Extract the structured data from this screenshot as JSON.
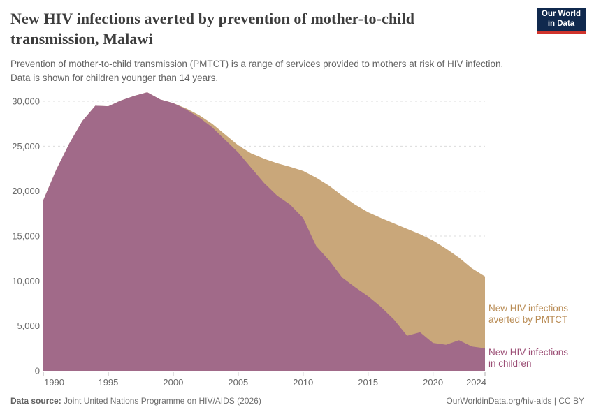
{
  "header": {
    "title": "New HIV infections averted by prevention of mother-to-child\ntransmission, Malawi",
    "subtitle": "Prevention of mother-to-child transmission (PMTCT) is a range of services provided to mothers at risk of HIV infection.\nData is shown for children younger than 14 years.",
    "logo": {
      "line1": "Our World",
      "line2": "in Data",
      "bg_color": "#10294e",
      "bar_color": "#d0342c"
    }
  },
  "footer": {
    "data_source_label": "Data source:",
    "data_source_text": " Joint United Nations Programme on HIV/AIDS (2026)",
    "attribution": "OurWorldinData.org/hiv-aids | CC BY"
  },
  "colors": {
    "grid": "#dcdcdc",
    "axis_text": "#6b6b6b",
    "tick_mark": "#afafaf",
    "background": "#ffffff"
  },
  "chart_data": {
    "type": "area",
    "stacked": true,
    "title": "New HIV infections averted by prevention of mother-to-child transmission, Malawi",
    "xlabel": "",
    "ylabel": "",
    "x": [
      1990,
      1991,
      1992,
      1993,
      1994,
      1995,
      1996,
      1997,
      1998,
      1999,
      2000,
      2001,
      2002,
      2003,
      2004,
      2005,
      2006,
      2007,
      2008,
      2009,
      2010,
      2011,
      2012,
      2013,
      2014,
      2015,
      2016,
      2017,
      2018,
      2019,
      2020,
      2021,
      2022,
      2023,
      2024
    ],
    "series": [
      {
        "name": "New HIV infections in children",
        "label_lines": "New HIV infections\nin children",
        "color": "#a16a89",
        "label_color": "#9c4f76",
        "values": [
          19000,
          22400,
          25300,
          27800,
          29500,
          29450,
          30100,
          30600,
          31000,
          30200,
          29800,
          29100,
          28200,
          27100,
          25700,
          24300,
          22600,
          20900,
          19500,
          18500,
          17000,
          13900,
          12300,
          10400,
          9300,
          8300,
          7100,
          5700,
          3900,
          4300,
          3100,
          2900,
          3400,
          2700,
          2500
        ]
      },
      {
        "name": "New HIV infections averted by PMTCT",
        "label_lines": "New HIV infections\naverted by PMTCT",
        "color": "#c9a77a",
        "label_color": "#b98c55",
        "values": [
          0,
          0,
          0,
          0,
          0,
          0,
          0,
          0,
          0,
          0,
          0,
          100,
          250,
          400,
          600,
          800,
          1600,
          2700,
          3600,
          4200,
          5250,
          7600,
          8300,
          9100,
          9200,
          9350,
          9900,
          10700,
          11900,
          10900,
          11400,
          10700,
          9200,
          8700,
          8000
        ]
      }
    ],
    "xticks": [
      1990,
      1995,
      2000,
      2005,
      2010,
      2015,
      2020,
      2024
    ],
    "yticks": [
      0,
      5000,
      10000,
      15000,
      20000,
      25000,
      30000
    ],
    "xlim": [
      1990,
      2024
    ],
    "ylim": [
      0,
      30000
    ],
    "grid": "horizontal-dashed",
    "legend_position": "inline-right-of-areas"
  }
}
